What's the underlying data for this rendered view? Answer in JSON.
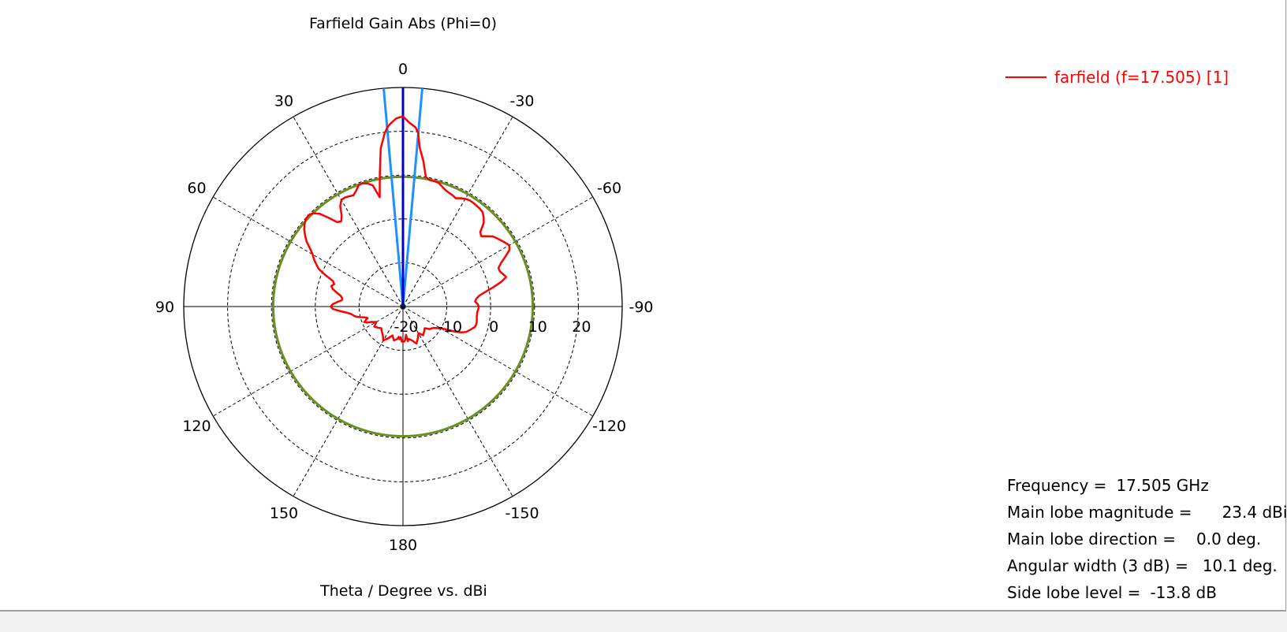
{
  "chart_data": {
    "type": "polar-line",
    "title": "Farfield Gain Abs (Phi=0)",
    "xlabel": "Theta / Degree vs. dBi",
    "angle_tick_labels": [
      "0",
      "-30",
      "-60",
      "-90",
      "-120",
      "-150",
      "180",
      "150",
      "120",
      "90",
      "60",
      "30"
    ],
    "angle_ticks_deg": [
      0,
      -30,
      -60,
      -90,
      -120,
      -150,
      180,
      150,
      120,
      90,
      60,
      30
    ],
    "radial_range": [
      -20,
      30
    ],
    "radial_ticks": [
      -20,
      -10,
      0,
      10,
      20
    ],
    "radial_tick_labels": [
      "-20",
      "-10",
      "0",
      "10",
      "20"
    ],
    "grid": true,
    "series": [
      {
        "name": "farfield (f=17.505) [1]",
        "color": "#ff0000",
        "theta": [
          0,
          2,
          4,
          5,
          6,
          8,
          10,
          12,
          14,
          16,
          18,
          20,
          22,
          24,
          26,
          28,
          30,
          32,
          34,
          36,
          38,
          40,
          42,
          44,
          46,
          48,
          50,
          52,
          54,
          56,
          58,
          60,
          62,
          64,
          66,
          68,
          70,
          72,
          74,
          76,
          78,
          80,
          82,
          84,
          86,
          88,
          90,
          92,
          94,
          96,
          98,
          100,
          102,
          104,
          106,
          108,
          110,
          112,
          114,
          116,
          118,
          120,
          125,
          130,
          135,
          140,
          145,
          150,
          155,
          160,
          165,
          170,
          172,
          174,
          176,
          178,
          180,
          -178,
          -176,
          -174,
          -172,
          -170,
          -165,
          -160,
          -155,
          -150,
          -145,
          -140,
          -135,
          -130,
          -125,
          -120,
          -118,
          -116,
          -114,
          -112,
          -110,
          -108,
          -106,
          -104,
          -102,
          -100,
          -98,
          -96,
          -94,
          -92,
          -90,
          -88,
          -86,
          -84,
          -82,
          -80,
          -78,
          -76,
          -74,
          -72,
          -70,
          -68,
          -66,
          -64,
          -62,
          -60,
          -58,
          -56,
          -54,
          -52,
          -50,
          -48,
          -46,
          -44,
          -42,
          -40,
          -38,
          -36,
          -34,
          -32,
          -30,
          -28,
          -26,
          -24,
          -22,
          -20,
          -18,
          -16,
          -14,
          -12,
          -10,
          -8,
          -6,
          -5,
          -4,
          -2
        ],
        "gain": [
          23.4,
          23.0,
          21.8,
          21.0,
          19.8,
          16.5,
          10.5,
          5.5,
          8.5,
          9.2,
          9.6,
          9.5,
          8.5,
          7.8,
          8.0,
          8.2,
          8.1,
          7.0,
          5.0,
          4.0,
          4.5,
          6.5,
          8.5,
          9.6,
          10.0,
          9.8,
          9.3,
          8.6,
          7.6,
          6.5,
          5.0,
          3.8,
          3.0,
          2.0,
          1.0,
          -1.0,
          -3.0,
          -3.5,
          -3.0,
          -3.5,
          -4.5,
          -5.5,
          -6.0,
          -6.0,
          -5.0,
          -4.0,
          -3.5,
          -4.0,
          -5.5,
          -7.0,
          -8.0,
          -8.5,
          -9.0,
          -10.0,
          -11.0,
          -11.5,
          -11.0,
          -10.5,
          -11.0,
          -12.0,
          -12.5,
          -13.0,
          -12.0,
          -12.5,
          -13.0,
          -12.5,
          -12.0,
          -11.0,
          -12.0,
          -13.0,
          -12.0,
          -12.5,
          -13.0,
          -12.5,
          -13.0,
          -12.0,
          -12.0,
          -12.0,
          -12.5,
          -13.5,
          -12.0,
          -12.5,
          -12.0,
          -11.0,
          -12.0,
          -13.0,
          -12.0,
          -12.5,
          -13.0,
          -12.0,
          -11.5,
          -10.0,
          -9.0,
          -7.0,
          -5.5,
          -4.5,
          -4.0,
          -3.5,
          -3.0,
          -2.8,
          -2.8,
          -2.9,
          -3.0,
          -3.0,
          -3.0,
          -2.8,
          -2.7,
          -3.0,
          -3.5,
          -3.2,
          -2.5,
          -1.0,
          1.0,
          3.0,
          4.5,
          4.0,
          3.5,
          3.5,
          4.5,
          6.0,
          7.5,
          8.0,
          7.5,
          7.0,
          6.5,
          6.0,
          5.0,
          4.0,
          4.5,
          6.5,
          7.5,
          8.2,
          8.4,
          8.5,
          8.6,
          8.6,
          8.4,
          8.0,
          7.5,
          7.8,
          8.0,
          8.3,
          8.8,
          9.4,
          9.5,
          9.5,
          10.0,
          13.5,
          16.5,
          19.8,
          21.0,
          22.0,
          23.0
        ]
      },
      {
        "name": "main lobe direction",
        "color": "#0000cc",
        "theta": [
          0
        ],
        "gain": [
          30
        ]
      },
      {
        "name": "3 dB beamwidth",
        "color": "#1e90ff",
        "theta": [
          -5.05,
          5.05
        ],
        "gain": [
          30,
          30
        ]
      },
      {
        "name": "side lobe level",
        "color": "#6b8e23",
        "constant_gain": 9.6
      }
    ]
  },
  "legend": {
    "label": "farfield (f=17.505) [1]",
    "color": "#ff0000"
  },
  "info": [
    {
      "key": "Frequency =",
      "value": "17.505 GHz"
    },
    {
      "key": "Main lobe magnitude =",
      "value": "23.4 dBi"
    },
    {
      "key": "Main lobe direction =",
      "value": "0.0 deg."
    },
    {
      "key": "Angular width (3 dB) =",
      "value": "10.1 deg."
    },
    {
      "key": "Side lobe level =",
      "value": "-13.8 dB"
    }
  ]
}
